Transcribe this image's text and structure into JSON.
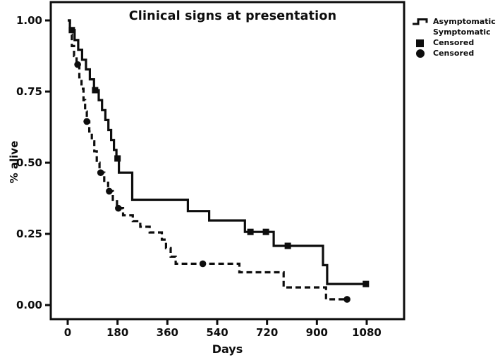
{
  "figure": {
    "title": "Clinical signs at presentation",
    "x_axis_label": "Days",
    "y_axis_label": "% alive"
  },
  "legend": {
    "items": [
      {
        "label": "Asymptomatic",
        "symbol": "solid-step-line"
      },
      {
        "label": "Symptomatic",
        "symbol": "dashed-step-line"
      },
      {
        "label": "Censored",
        "symbol": "filled-square"
      },
      {
        "label": "Censored",
        "symbol": "filled-circle"
      }
    ]
  },
  "chart_data": {
    "type": "line",
    "subtype": "kaplan-meier-step-survival",
    "title": "Clinical signs at presentation",
    "xlabel": "Days",
    "ylabel": "% alive",
    "grid": false,
    "legend_position": "outside-top-right",
    "colors": {
      "line": "#0d0d0d",
      "background": "#ffffff"
    },
    "x_axis": {
      "range": [
        0,
        1080
      ],
      "ticks": [
        {
          "value": 0,
          "label": "0"
        },
        {
          "value": 180,
          "label": "180"
        },
        {
          "value": 360,
          "label": "360"
        },
        {
          "value": 540,
          "label": "540"
        },
        {
          "value": 720,
          "label": "720"
        },
        {
          "value": 900,
          "label": "900"
        },
        {
          "value": 1080,
          "label": "1080"
        }
      ]
    },
    "y_axis": {
      "range": [
        0,
        1
      ],
      "ticks": [
        {
          "value": 1.0,
          "label": "1.00"
        },
        {
          "value": 0.75,
          "label": "0.75"
        },
        {
          "value": 0.5,
          "label": "0.50"
        },
        {
          "value": 0.25,
          "label": "0.25"
        },
        {
          "value": 0.0,
          "label": "0.00"
        }
      ]
    },
    "series": [
      {
        "name": "Asymptomatic",
        "style": "solid",
        "censor_marker": "square",
        "steps": [
          [
            0,
            1.0
          ],
          [
            8,
            0.966
          ],
          [
            25,
            0.931
          ],
          [
            38,
            0.897
          ],
          [
            52,
            0.862
          ],
          [
            66,
            0.828
          ],
          [
            80,
            0.793
          ],
          [
            95,
            0.755
          ],
          [
            112,
            0.72
          ],
          [
            124,
            0.685
          ],
          [
            136,
            0.65
          ],
          [
            147,
            0.615
          ],
          [
            157,
            0.58
          ],
          [
            167,
            0.545
          ],
          [
            176,
            0.515
          ],
          [
            185,
            0.465
          ],
          [
            233,
            0.37
          ],
          [
            434,
            0.33
          ],
          [
            511,
            0.297
          ],
          [
            640,
            0.257
          ],
          [
            744,
            0.208
          ],
          [
            922,
            0.14
          ],
          [
            937,
            0.074
          ]
        ],
        "end_x": 1080,
        "censored": [
          [
            15,
            0.966
          ],
          [
            99,
            0.755
          ],
          [
            180,
            0.515
          ],
          [
            660,
            0.257
          ],
          [
            716,
            0.257
          ],
          [
            795,
            0.208
          ],
          [
            1077,
            0.074
          ]
        ]
      },
      {
        "name": "Symptomatic",
        "style": "dashed",
        "censor_marker": "circle",
        "steps": [
          [
            0,
            1.0
          ],
          [
            8,
            0.95
          ],
          [
            15,
            0.91
          ],
          [
            23,
            0.875
          ],
          [
            32,
            0.845
          ],
          [
            42,
            0.8
          ],
          [
            50,
            0.76
          ],
          [
            57,
            0.72
          ],
          [
            63,
            0.68
          ],
          [
            69,
            0.645
          ],
          [
            78,
            0.61
          ],
          [
            87,
            0.575
          ],
          [
            96,
            0.54
          ],
          [
            105,
            0.5
          ],
          [
            115,
            0.465
          ],
          [
            132,
            0.43
          ],
          [
            146,
            0.4
          ],
          [
            163,
            0.37
          ],
          [
            178,
            0.34
          ],
          [
            200,
            0.315
          ],
          [
            235,
            0.295
          ],
          [
            262,
            0.275
          ],
          [
            296,
            0.255
          ],
          [
            340,
            0.23
          ],
          [
            355,
            0.2
          ],
          [
            372,
            0.17
          ],
          [
            390,
            0.145
          ],
          [
            620,
            0.115
          ],
          [
            780,
            0.062
          ],
          [
            933,
            0.02
          ]
        ],
        "end_x": 1010,
        "censored": [
          [
            36,
            0.845
          ],
          [
            69,
            0.645
          ],
          [
            119,
            0.465
          ],
          [
            150,
            0.4
          ],
          [
            183,
            0.34
          ],
          [
            488,
            0.145
          ],
          [
            1009,
            0.02
          ]
        ]
      }
    ]
  }
}
